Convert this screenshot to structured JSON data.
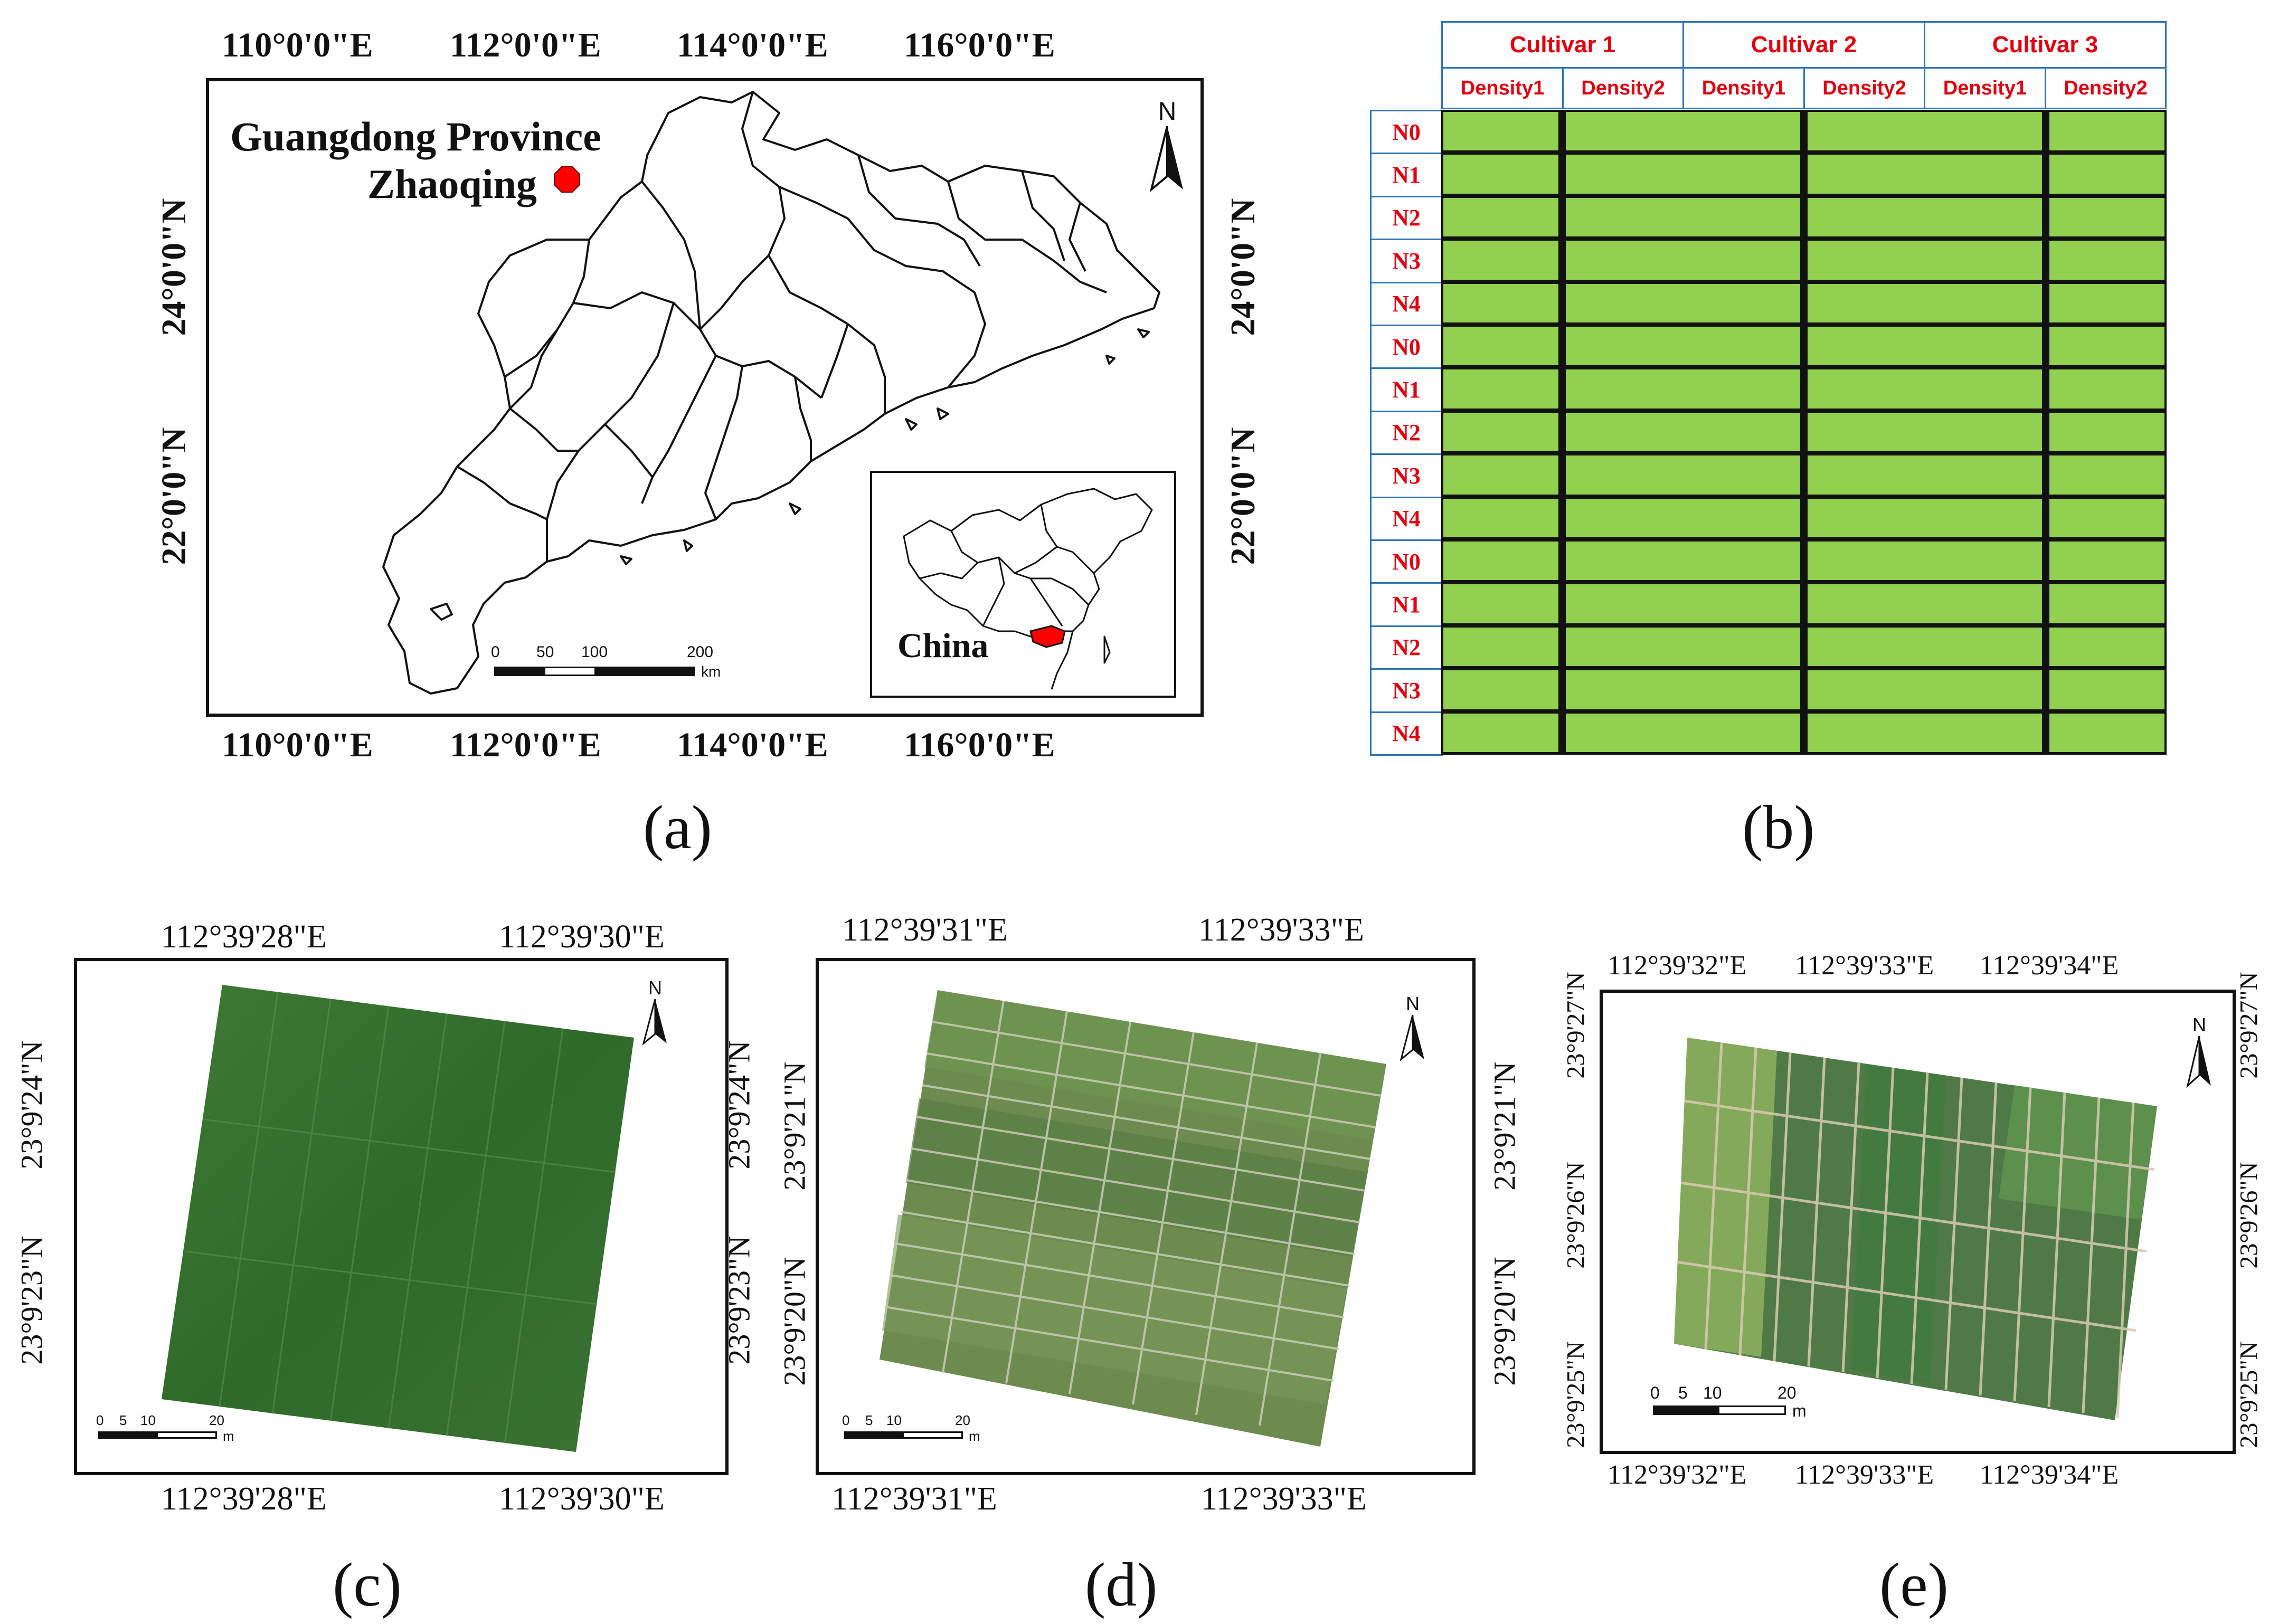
{
  "panel_a": {
    "caption": "(a)",
    "top_lon_labels": [
      "110°0'0\"E",
      "112°0'0\"E",
      "114°0'0\"E",
      "116°0'0\"E"
    ],
    "bottom_lon_labels": [
      "110°0'0\"E",
      "112°0'0\"E",
      "114°0'0\"E",
      "116°0'0\"E"
    ],
    "left_lat_labels": [
      "24°0'0\"N",
      "22°0'0\"N"
    ],
    "right_lat_labels": [
      "24°0'0\"N",
      "22°0'0\"N"
    ],
    "province_label": "Guangdong Province",
    "city_label": "Zhaoqing",
    "north_label": "N",
    "scale_labels": [
      "0",
      "50",
      "100",
      "200"
    ],
    "scale_unit": "km",
    "inset_label": "China",
    "marker_color": "#ff0000"
  },
  "panel_b": {
    "caption": "(b)",
    "cultivars": [
      "Cultivar 1",
      "Cultivar 2",
      "Cultivar 3"
    ],
    "densities": [
      "Density1",
      "Density2",
      "Density1",
      "Density2",
      "Density1",
      "Density2"
    ],
    "rows": [
      "N0",
      "N1",
      "N2",
      "N3",
      "N4",
      "N0",
      "N1",
      "N2",
      "N3",
      "N4",
      "N0",
      "N1",
      "N2",
      "N3",
      "N4"
    ],
    "field_color": "#92d050",
    "header_text_color": "#e3000f",
    "border_color": "#2e75b6"
  },
  "panel_c": {
    "caption": "(c)",
    "top_lon_labels": [
      "112°39'28\"E",
      "112°39'30\"E"
    ],
    "bottom_lon_labels": [
      "112°39'28\"E",
      "112°39'30\"E"
    ],
    "left_lat_labels": [
      "23°9'24\"N",
      "23°9'23\"N"
    ],
    "right_lat_labels": [
      "23°9'24\"N",
      "23°9'23\"N"
    ],
    "north_label": "N",
    "scale_labels": [
      "0",
      "5",
      "10",
      "20"
    ],
    "scale_unit": "m"
  },
  "panel_d": {
    "caption": "(d)",
    "top_lon_labels": [
      "112°39'31\"E",
      "112°39'33\"E"
    ],
    "bottom_lon_labels": [
      "112°39'31\"E",
      "112°39'33\"E"
    ],
    "left_lat_labels": [
      "23°9'21\"N",
      "23°9'20\"N"
    ],
    "right_lat_labels": [
      "23°9'21\"N",
      "23°9'20\"N"
    ],
    "north_label": "N",
    "scale_labels": [
      "0",
      "5",
      "10",
      "20"
    ],
    "scale_unit": "m"
  },
  "panel_e": {
    "caption": "(e)",
    "top_lon_labels": [
      "112°39'32\"E",
      "112°39'33\"E",
      "112°39'34\"E"
    ],
    "bottom_lon_labels": [
      "112°39'32\"E",
      "112°39'33\"E",
      "112°39'34\"E"
    ],
    "left_lat_labels": [
      "23°9'27\"N",
      "23°9'26\"N",
      "23°9'25\"N"
    ],
    "right_lat_labels": [
      "23°9'27\"N",
      "23°9'26\"N",
      "23°9'25\"N"
    ],
    "north_label": "N",
    "scale_labels": [
      "0",
      "5",
      "10",
      "20"
    ],
    "scale_unit": "m"
  }
}
